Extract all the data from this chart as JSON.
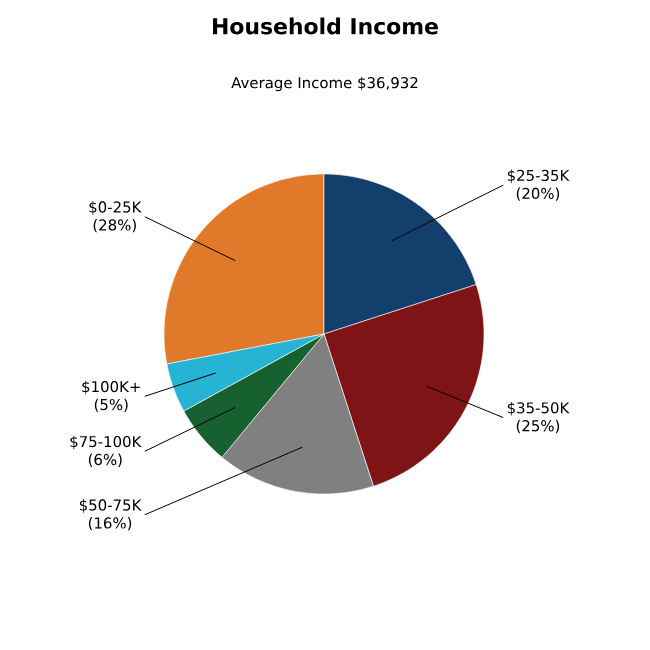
{
  "chart_data": {
    "type": "pie",
    "title": "Household Income",
    "subtitle": "Average Income  $36,932",
    "categories": [
      "$0-25K",
      "$25-35K",
      "$35-50K",
      "$50-75K",
      "$75-100K",
      "$100K+"
    ],
    "values": [
      28,
      20,
      25,
      16,
      6,
      5
    ],
    "value_labels": [
      "(28%)",
      "(20%)",
      "(25%)",
      "(16%)",
      "(6%)",
      "(5%)"
    ],
    "colors": [
      "#e07a2a",
      "#123f6b",
      "#7e1416",
      "#808080",
      "#17602f",
      "#27b3d3"
    ]
  }
}
